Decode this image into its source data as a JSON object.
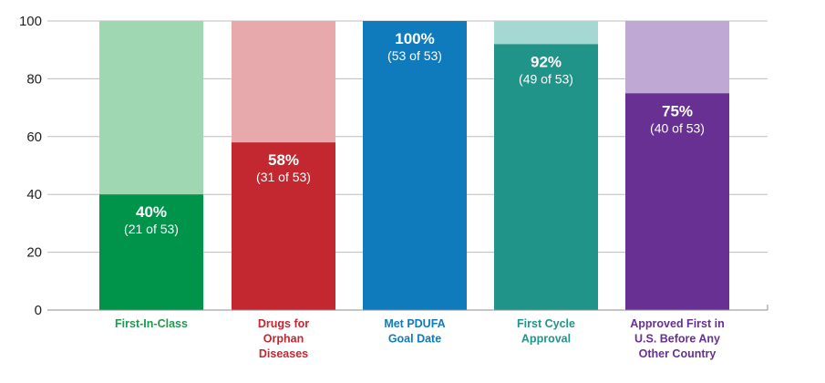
{
  "chart_data": {
    "type": "bar",
    "stacked_with_remainder": true,
    "title": "",
    "xlabel": "",
    "ylabel": "",
    "ylim": [
      0,
      100
    ],
    "yticks": [
      0,
      20,
      40,
      60,
      80,
      100
    ],
    "grid": true,
    "bars": [
      {
        "category": [
          "First-In-Class"
        ],
        "value": 40,
        "pct_label": "40%",
        "count_label": "(21 of 53)",
        "color": "#00934a",
        "light_color": "#9fd7b3",
        "label_color": "#1e9a4e"
      },
      {
        "category": [
          "Drugs for",
          "Orphan",
          "Diseases"
        ],
        "value": 58,
        "pct_label": "58%",
        "count_label": "(31 of 53)",
        "color": "#c3272f",
        "light_color": "#e8a9ac",
        "label_color": "#c3272f"
      },
      {
        "category": [
          "Met PDUFA",
          "Goal Date"
        ],
        "value": 100,
        "pct_label": "100%",
        "count_label": "(53 of 53)",
        "color": "#0f7bbd",
        "light_color": "#9cc8e4",
        "label_color": "#0f7bbd"
      },
      {
        "category": [
          "First Cycle",
          "Approval"
        ],
        "value": 92,
        "pct_label": "92%",
        "count_label": "(49 of 53)",
        "color": "#21948a",
        "light_color": "#a6d8d3",
        "label_color": "#21948a"
      },
      {
        "category": [
          "Approved First in",
          "U.S. Before Any",
          "Other Country"
        ],
        "value": 75,
        "pct_label": "75%",
        "count_label": "(40 of 53)",
        "color": "#683092",
        "light_color": "#c0a8d5",
        "label_color": "#683092"
      }
    ]
  }
}
